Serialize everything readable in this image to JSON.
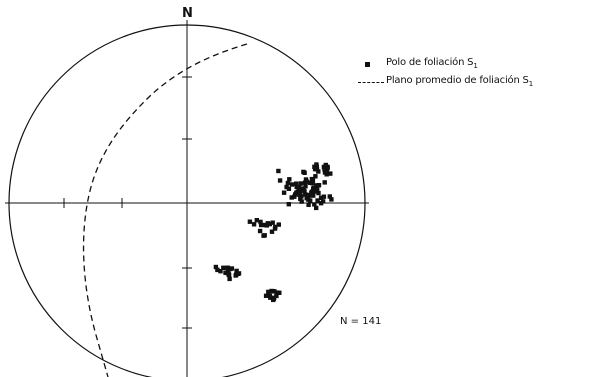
{
  "north_label": "N",
  "count_label": "N = 141",
  "legend": {
    "pole_label": "Polo de foliación S",
    "pole_subscript": "1",
    "plane_label": "Plano promedio de foliación S",
    "plane_subscript": "1"
  },
  "chart_data": {
    "type": "stereonet",
    "n": 141
  },
  "colors": {
    "ink": "#111111",
    "background": "#ffffff"
  }
}
